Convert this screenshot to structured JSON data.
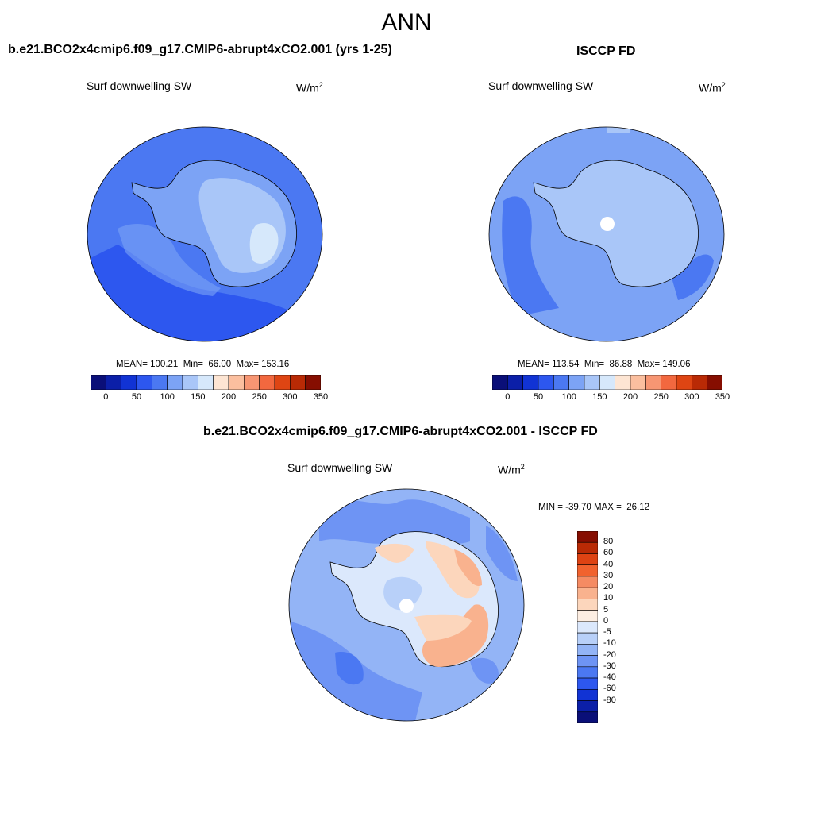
{
  "figure": {
    "title": "ANN"
  },
  "colors": {
    "abs_scale": [
      "#0a0f78",
      "#0b1fa8",
      "#1133d4",
      "#2d57ef",
      "#4b78f2",
      "#7ca3f5",
      "#a9c6f8",
      "#d6e8fb",
      "#fde5d3",
      "#fbbf9f",
      "#f79673",
      "#f2683f",
      "#de4513",
      "#b92a05",
      "#860e01"
    ],
    "diff_scale": [
      "#0a0f78",
      "#0b1fa8",
      "#1133d4",
      "#2d57ef",
      "#4b78f2",
      "#6e94f4",
      "#93b4f6",
      "#b8d0f9",
      "#dbe8fc",
      "#fdeee2",
      "#fcd6bc",
      "#f9b28e",
      "#f58b63",
      "#f1622e",
      "#de4313",
      "#b92a05",
      "#860e01"
    ]
  },
  "panels": {
    "model": {
      "title": "b.e21.BCO2x4cmip6.f09_g17.CMIP6-abrupt4xCO2.001 (yrs 1-25)",
      "variable": "Surf downwelling SW",
      "unit_base": "W/m",
      "unit_exp": "2",
      "stats": "MEAN= 100.21  Min=  66.00  Max= 153.16",
      "colorbar_ticks": [
        "0",
        "50",
        "100",
        "150",
        "200",
        "250",
        "300",
        "350"
      ]
    },
    "obs": {
      "title": "ISCCP FD",
      "variable": "Surf downwelling SW",
      "unit_base": "W/m",
      "unit_exp": "2",
      "stats": "MEAN= 113.54  Min=  86.88  Max= 149.06",
      "colorbar_ticks": [
        "0",
        "50",
        "100",
        "150",
        "200",
        "250",
        "300",
        "350"
      ]
    },
    "diff": {
      "title": "b.e21.BCO2x4cmip6.f09_g17.CMIP6-abrupt4xCO2.001 - ISCCP FD",
      "variable": "Surf downwelling SW",
      "unit_base": "W/m",
      "unit_exp": "2",
      "stats": "MIN = -39.70 MAX =  26.12",
      "colorbar_ticks": [
        "80",
        "60",
        "40",
        "30",
        "20",
        "10",
        "5",
        "0",
        "-5",
        "-10",
        "-20",
        "-30",
        "-40",
        "-60",
        "-80"
      ]
    }
  }
}
